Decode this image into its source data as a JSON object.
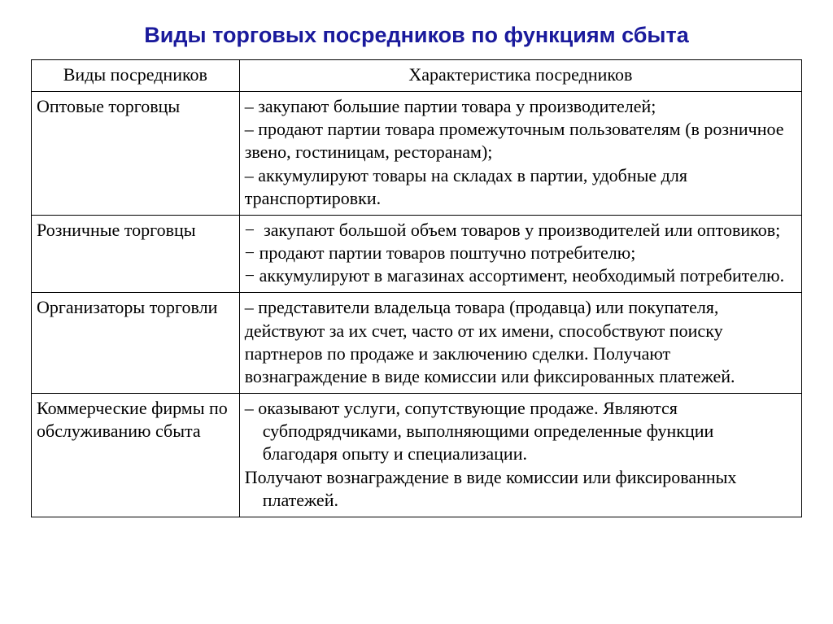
{
  "title": "Виды торговых посредников по функциям сбыта",
  "title_color": "#1a1a9c",
  "title_fontsize": 27,
  "body_fontsize": 22,
  "text_color": "#000000",
  "columns": [
    "Виды посредников",
    "Характеристика посредников"
  ],
  "rows": [
    {
      "type": "Оптовые торговцы",
      "desc": "– закупают большие партии товара у производителей;\n– продают партии товара промежуточным пользователям (в розничное звено, гостиницам, ресторанам);\n– аккумулируют товары на складах в партии, удобные для транспортировки."
    },
    {
      "type": "Розничные торговцы",
      "desc": "−  закупают большой объем товаров у производителей или оптовиков;\n− продают партии товаров поштучно потребителю;\n− аккумулируют в магазинах ассортимент, необходимый потребителю."
    },
    {
      "type": "Организаторы торговли",
      "desc": "– представители владельца товара (продавца) или покупателя, действуют за их счет, часто от их имени, способствуют поиску партнеров по продаже и заключению сделки. Получают вознаграждение в виде комиссии или фиксированных платежей."
    },
    {
      "type": "Коммерческие фирмы по обслуживанию сбыта",
      "desc": "– оказывают услуги, сопутствующие продаже. Являются\n    субподрядчиками, выполняющими определенные функции\n    благодаря опыту и специализации.\nПолучают вознаграждение в виде комиссии или фиксированных\n    платежей."
    }
  ]
}
